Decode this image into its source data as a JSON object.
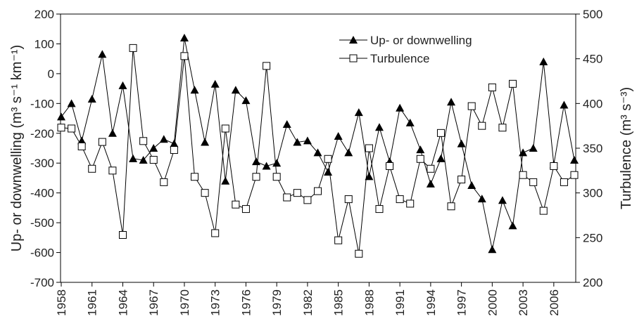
{
  "chart_data": {
    "type": "line",
    "x": [
      1958,
      1959,
      1960,
      1961,
      1962,
      1963,
      1964,
      1965,
      1966,
      1967,
      1968,
      1969,
      1970,
      1971,
      1972,
      1973,
      1974,
      1975,
      1976,
      1977,
      1978,
      1979,
      1980,
      1981,
      1982,
      1983,
      1984,
      1985,
      1986,
      1987,
      1988,
      1989,
      1990,
      1991,
      1992,
      1993,
      1994,
      1995,
      1996,
      1997,
      1998,
      1999,
      2000,
      2001,
      2002,
      2003,
      2004,
      2005,
      2006,
      2007,
      2008
    ],
    "xlim": [
      1958,
      2008
    ],
    "xticks": [
      1958,
      1961,
      1964,
      1967,
      1970,
      1973,
      1976,
      1979,
      1982,
      1985,
      1988,
      1991,
      1994,
      1997,
      2000,
      2003,
      2006
    ],
    "ylim": [
      -700,
      200
    ],
    "yticks": [
      200,
      100,
      0,
      -100,
      -200,
      -300,
      -400,
      -500,
      -600,
      -700
    ],
    "y2lim": [
      200,
      500
    ],
    "y2ticks": [
      500,
      450,
      400,
      350,
      300,
      250,
      200
    ],
    "ylabel": "Up- or downwelling (m³ s⁻¹ km⁻¹)",
    "y2label": "Turbulence (m³ s⁻³)",
    "series": [
      {
        "name": "Up- or downwelling",
        "color": "#000000",
        "marker": "triangle",
        "values": [
          -145,
          -100,
          -225,
          -85,
          65,
          -200,
          -40,
          -285,
          -290,
          -250,
          -220,
          -235,
          120,
          -55,
          -230,
          -35,
          -360,
          -55,
          -90,
          -295,
          -310,
          -300,
          -170,
          -230,
          -225,
          -265,
          -330,
          -210,
          -265,
          -130,
          -345,
          -180,
          -295,
          -115,
          -165,
          -255,
          -370,
          -285,
          -95,
          -235,
          -375,
          -420,
          -590,
          -425,
          -510,
          -265,
          -250,
          40,
          -305,
          -105,
          -290
        ]
      },
      {
        "name": "Turbulence",
        "color": "#000000",
        "marker": "square",
        "axis": "y2",
        "values": [
          373,
          372,
          352,
          327,
          357,
          325,
          253,
          462,
          358,
          337,
          312,
          348,
          453,
          318,
          300,
          255,
          372,
          287,
          282,
          318,
          442,
          318,
          295,
          300,
          292,
          302,
          338,
          247,
          293,
          232,
          350,
          282,
          330,
          293,
          288,
          338,
          327,
          367,
          285,
          315,
          397,
          375,
          418,
          373,
          422,
          320,
          312,
          280,
          330,
          312,
          320
        ]
      }
    ]
  }
}
